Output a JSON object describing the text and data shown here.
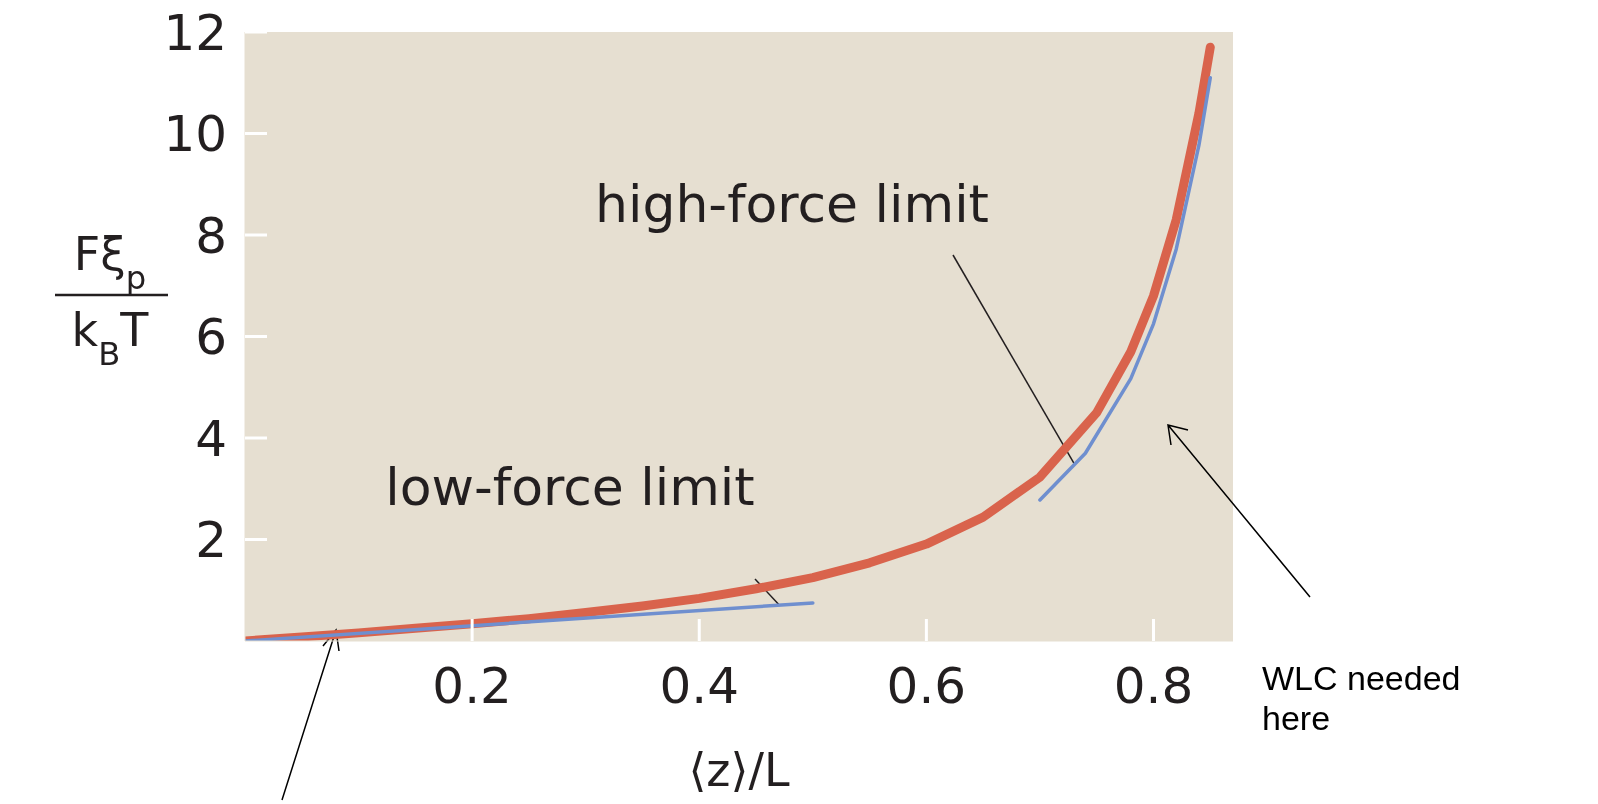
{
  "chart_data": {
    "type": "line",
    "xlabel": "⟨z⟩/L",
    "ylabel": "Fξ$_{p}$ k$_{B}$T",
    "xlim": [
      0,
      0.87
    ],
    "xticks": [
      0.2,
      0.4,
      0.6,
      0.8
    ],
    "ylim": [
      0,
      12
    ],
    "yticks": [
      2,
      4,
      6,
      8,
      10,
      12
    ],
    "grid": false,
    "legend": false,
    "marker": "none",
    "line_style": "solid",
    "series": [
      {
        "color": "#d9634c",
        "x": [
          0,
          0.05,
          0.1,
          0.15,
          0.2,
          0.25,
          0.3,
          0.35,
          0.4,
          0.45,
          0.5,
          0.55,
          0.6,
          0.65,
          0.7,
          0.75,
          0.78,
          0.8,
          0.82,
          0.84,
          0.85
        ],
        "values": [
          0,
          0.08,
          0.16,
          0.25,
          0.34,
          0.44,
          0.56,
          0.69,
          0.84,
          1.03,
          1.25,
          1.54,
          1.91,
          2.44,
          3.23,
          4.5,
          5.7,
          6.8,
          8.3,
          10.4,
          11.7
        ]
      },
      {
        "color": "#6f8fcf",
        "x": [
          0,
          0.5
        ],
        "values": [
          0,
          0.75
        ]
      },
      {
        "color": "#6f8fcf",
        "x": [
          0.7,
          0.74,
          0.78,
          0.8,
          0.82,
          0.84,
          0.85
        ],
        "values": [
          2.78,
          3.7,
          5.17,
          6.25,
          7.72,
          9.77,
          11.1
        ]
      }
    ],
    "annotations": [
      {
        "text": "low-force limit",
        "x": 0.47,
        "y": 0.72
      },
      {
        "text": "high-force limit",
        "x": 0.73,
        "y": 3.5
      },
      "WLC needed here"
    ]
  }
}
